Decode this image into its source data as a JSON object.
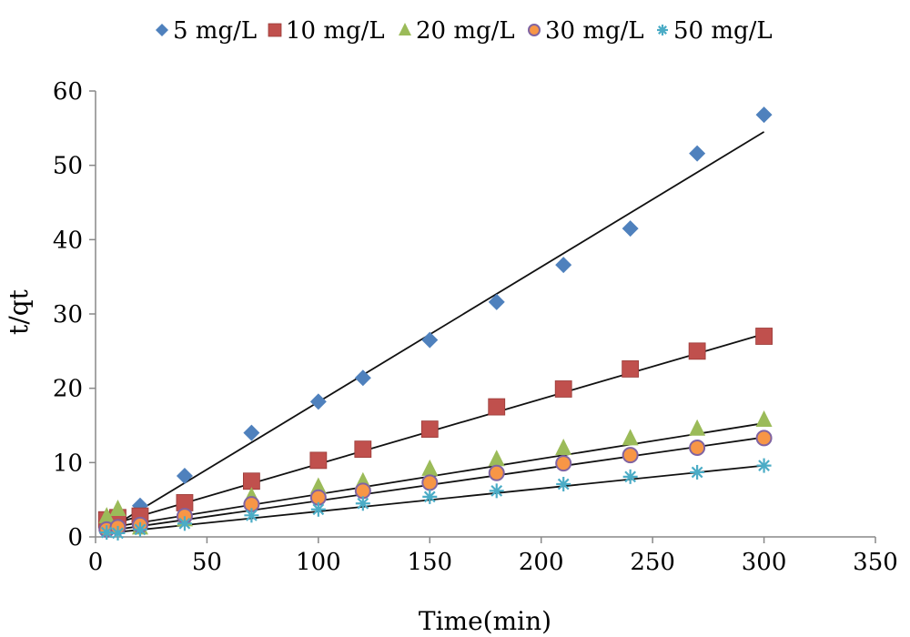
{
  "chart_data": {
    "type": "scatter",
    "title": "",
    "xlabel": "Time(min)",
    "ylabel": "t/qt",
    "xlim": [
      0,
      350
    ],
    "ylim": [
      0,
      60
    ],
    "xticks": [
      0,
      50,
      100,
      150,
      200,
      250,
      300,
      350
    ],
    "yticks": [
      0,
      10,
      20,
      30,
      40,
      50,
      60
    ],
    "grid": false,
    "legend": "top",
    "series": [
      {
        "name": "5 mg/L",
        "color": "#4F81BD",
        "marker": "diamond",
        "x": [
          5,
          10,
          20,
          40,
          70,
          100,
          120,
          150,
          180,
          210,
          240,
          270,
          300
        ],
        "y": [
          1.2,
          2.2,
          4.2,
          8.2,
          14.0,
          18.2,
          21.4,
          26.5,
          31.6,
          36.6,
          41.5,
          51.6,
          56.8
        ],
        "fit": [
          [
            5,
            0.9
          ],
          [
            300,
            54.5
          ]
        ]
      },
      {
        "name": "10 mg/L",
        "color": "#C0504D",
        "marker": "square",
        "x": [
          5,
          10,
          20,
          40,
          70,
          100,
          120,
          150,
          180,
          210,
          240,
          270,
          300
        ],
        "y": [
          2.3,
          2.6,
          2.8,
          4.6,
          7.5,
          10.3,
          11.8,
          14.5,
          17.5,
          19.9,
          22.6,
          25.0,
          27.0
        ],
        "fit": [
          [
            5,
            1.5
          ],
          [
            300,
            27.3
          ]
        ]
      },
      {
        "name": "20 mg/L",
        "color": "#9BBB59",
        "marker": "triangle",
        "x": [
          5,
          10,
          20,
          40,
          70,
          100,
          120,
          150,
          180,
          210,
          240,
          270,
          300
        ],
        "y": [
          2.8,
          3.8,
          1.3,
          2.4,
          5.5,
          6.8,
          7.5,
          9.2,
          10.5,
          12.0,
          13.3,
          14.6,
          15.8
        ],
        "fit": [
          [
            5,
            1.2
          ],
          [
            300,
            15.3
          ]
        ]
      },
      {
        "name": "30 mg/L",
        "color": "#F79646",
        "marker": "circle",
        "x": [
          5,
          10,
          20,
          40,
          70,
          100,
          120,
          150,
          180,
          210,
          240,
          270,
          300
        ],
        "y": [
          1.0,
          1.3,
          1.6,
          2.8,
          4.4,
          5.3,
          6.2,
          7.3,
          8.6,
          9.9,
          11.0,
          12.0,
          13.3
        ],
        "fit": [
          [
            5,
            0.8
          ],
          [
            300,
            13.4
          ]
        ]
      },
      {
        "name": "50 mg/L",
        "color": "#4BACC6",
        "marker": "star",
        "x": [
          5,
          10,
          20,
          40,
          70,
          100,
          120,
          150,
          180,
          210,
          240,
          270,
          300
        ],
        "y": [
          0.6,
          0.5,
          1.0,
          1.8,
          2.9,
          3.7,
          4.5,
          5.4,
          6.2,
          7.1,
          8.1,
          8.7,
          9.6
        ],
        "fit": [
          [
            5,
            0.5
          ],
          [
            300,
            9.6
          ]
        ]
      }
    ]
  }
}
